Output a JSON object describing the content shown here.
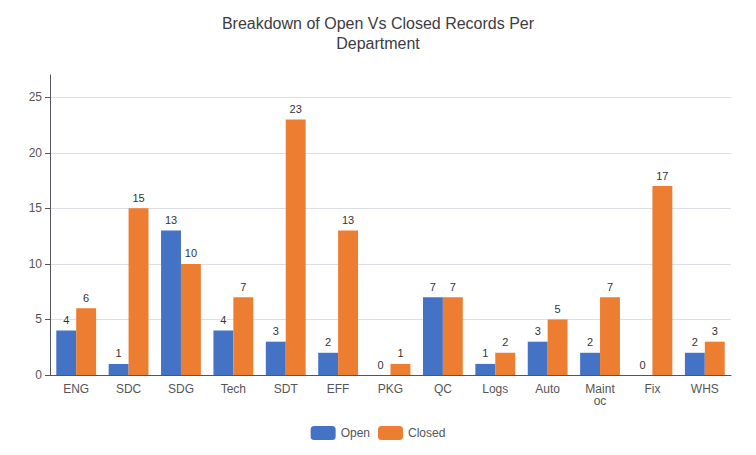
{
  "chart_data": {
    "type": "bar",
    "title": "Breakdown of Open Vs Closed Records Per\nDepartment",
    "categories": [
      "ENG",
      "SDC",
      "SDG",
      "Tech",
      "SDT",
      "EFF",
      "PKG",
      "QC",
      "Logs",
      "Auto",
      "Maint\noc",
      "Fix",
      "WHS"
    ],
    "series": [
      {
        "name": "Open",
        "color": "#4472C4",
        "values": [
          4,
          1,
          13,
          4,
          3,
          2,
          0,
          7,
          1,
          3,
          2,
          0,
          2
        ]
      },
      {
        "name": "Closed",
        "color": "#ED7D31",
        "values": [
          6,
          15,
          10,
          7,
          23,
          13,
          1,
          7,
          2,
          5,
          7,
          17,
          3
        ]
      }
    ],
    "ylim": [
      0,
      27
    ],
    "yticks": [
      0,
      5,
      10,
      15,
      20,
      25
    ],
    "grid": true,
    "legend": "bottom",
    "data_labels": true
  }
}
